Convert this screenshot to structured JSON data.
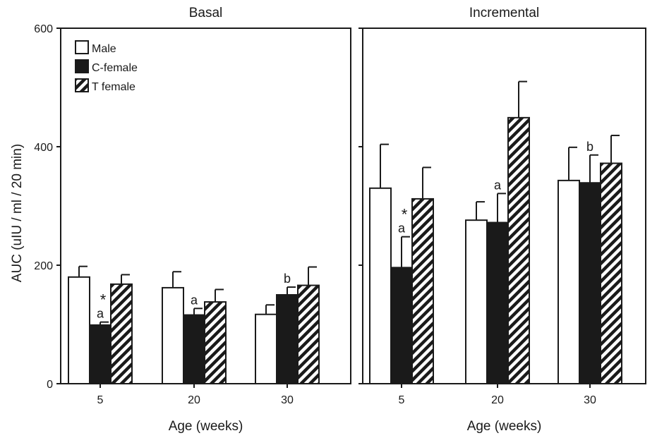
{
  "chart_data": {
    "type": "bar",
    "ylabel": "AUC (uIU / ml / 20 min)",
    "ylim": [
      0,
      600
    ],
    "yticks": [
      0,
      200,
      400,
      600
    ],
    "legend": {
      "placement": "top-left",
      "entries": [
        "Male",
        "C-female",
        "T female"
      ]
    },
    "series_styles": [
      {
        "fill": "#ffffff",
        "pattern": "none"
      },
      {
        "fill": "#1a1a1a",
        "pattern": "none"
      },
      {
        "fill": "#ffffff",
        "pattern": "diagonal-stripes"
      }
    ],
    "panels": [
      {
        "title": "Basal",
        "xlabel": "Age (weeks)",
        "categories": [
          "5",
          "20",
          "30"
        ],
        "series": [
          {
            "name": "Male",
            "values": [
              180,
              162,
              117
            ],
            "errors": [
              18,
              27,
              16
            ]
          },
          {
            "name": "C-female",
            "values": [
              99,
              116,
              150
            ],
            "errors": [
              5,
              11,
              13
            ]
          },
          {
            "name": "T female",
            "values": [
              168,
              138,
              166
            ],
            "errors": [
              16,
              21,
              31
            ]
          }
        ],
        "annotations": [
          {
            "category": "5",
            "series": "C-female",
            "text": "a",
            "marker": "*"
          },
          {
            "category": "20",
            "series": "C-female",
            "text": "a"
          },
          {
            "category": "30",
            "series": "C-female",
            "text": "b"
          }
        ]
      },
      {
        "title": "Incremental",
        "xlabel": "Age (weeks)",
        "categories": [
          "5",
          "20",
          "30"
        ],
        "series": [
          {
            "name": "Male",
            "values": [
              330,
              276,
              343
            ],
            "errors": [
              74,
              31,
              56
            ]
          },
          {
            "name": "C-female",
            "values": [
              196,
              272,
              339
            ],
            "errors": [
              52,
              49,
              47
            ]
          },
          {
            "name": "T female",
            "values": [
              312,
              449,
              372
            ],
            "errors": [
              53,
              61,
              47
            ]
          }
        ],
        "annotations": [
          {
            "category": "5",
            "series": "C-female",
            "text": "a",
            "marker": "*"
          },
          {
            "category": "20",
            "series": "C-female",
            "text": "a"
          },
          {
            "category": "30",
            "series": "C-female",
            "text": "b"
          }
        ]
      }
    ]
  }
}
